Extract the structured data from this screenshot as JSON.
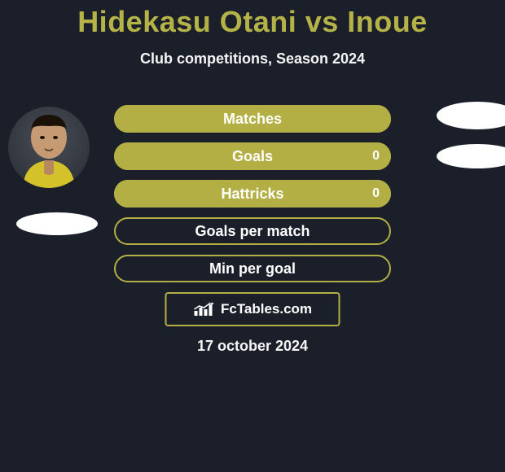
{
  "title_color": "#b5b348",
  "title": "Hidekasu Otani vs Inoue",
  "subtitle": "Club competitions, Season 2024",
  "bar_color": "#b3af44",
  "bar_outline_color": "#b3af44",
  "background_color": "#1a1f29",
  "bars": [
    {
      "label": "Matches",
      "fill_pct": 100,
      "right_value": ""
    },
    {
      "label": "Goals",
      "fill_pct": 100,
      "right_value": "0"
    },
    {
      "label": "Hattricks",
      "fill_pct": 100,
      "right_value": "0"
    },
    {
      "label": "Goals per match",
      "fill_pct": 0,
      "right_value": ""
    },
    {
      "label": "Min per goal",
      "fill_pct": 0,
      "right_value": ""
    }
  ],
  "brand": "FcTables.com",
  "date": "17 october 2024"
}
